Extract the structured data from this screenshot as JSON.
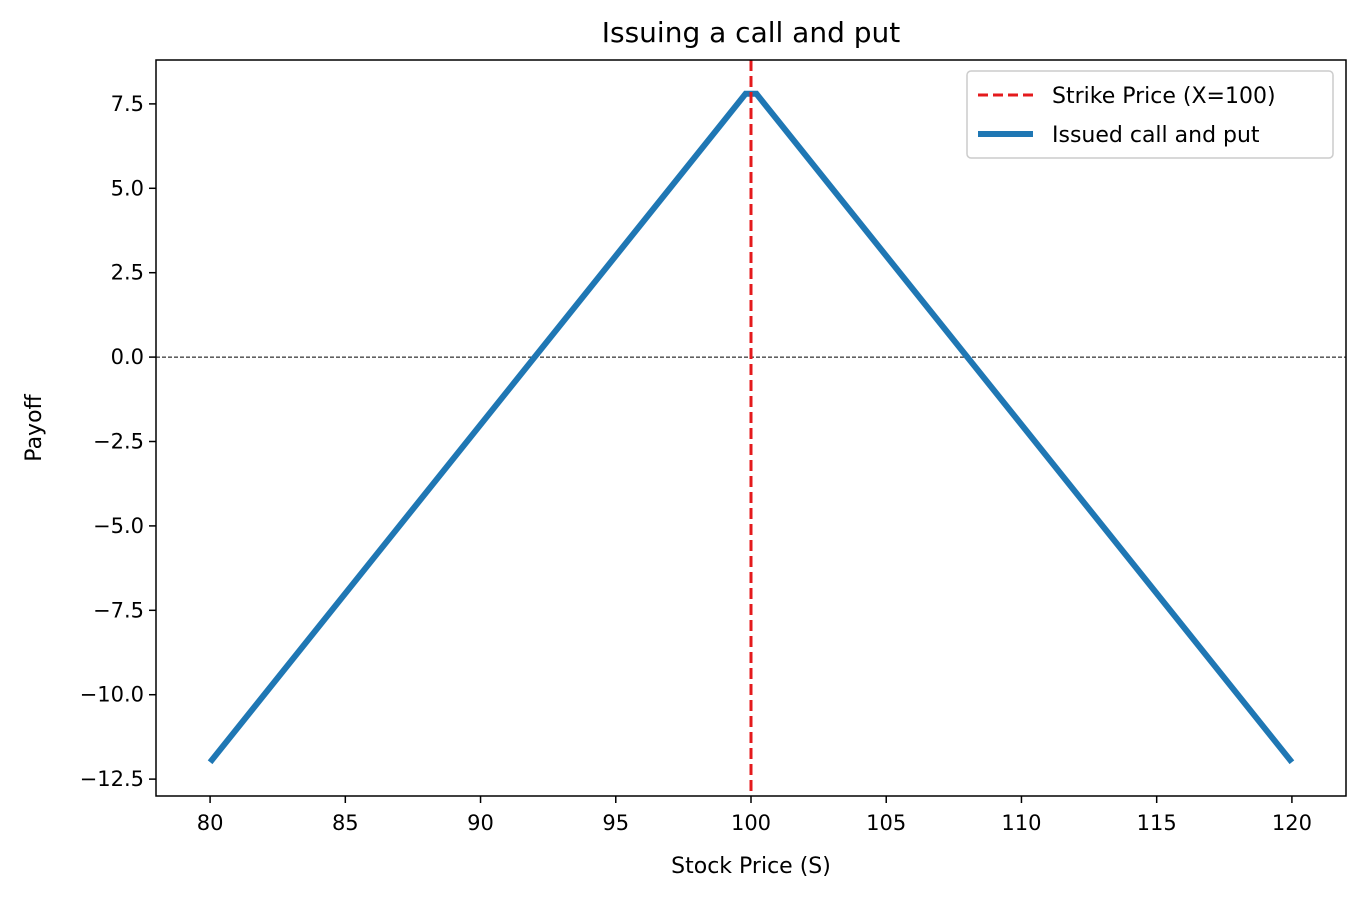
{
  "chart_data": {
    "type": "line",
    "title": "Issuing a call and put",
    "xlabel": "Stock Price (S)",
    "ylabel": "Payoff",
    "xlim": [
      78,
      122
    ],
    "ylim": [
      -13.0,
      8.8
    ],
    "x_ticks": [
      80,
      85,
      90,
      95,
      100,
      105,
      110,
      115,
      120
    ],
    "x_tick_labels": [
      "80",
      "85",
      "90",
      "95",
      "100",
      "105",
      "110",
      "115",
      "120"
    ],
    "y_ticks": [
      7.5,
      5.0,
      2.5,
      0.0,
      -2.5,
      -5.0,
      -7.5,
      -10.0,
      -12.5
    ],
    "y_tick_labels": [
      "7.5",
      "5.0",
      "2.5",
      "0.0",
      "−2.5",
      "−5.0",
      "−7.5",
      "−10.0",
      "−12.5"
    ],
    "grid": false,
    "legend_position": "top-right",
    "zero_line": {
      "y": 0.0,
      "style": "dashed",
      "color": "#000000"
    },
    "strike_line": {
      "name": "Strike Price (X=100)",
      "x": 100,
      "color": "#e41a1c",
      "style": "dashed"
    },
    "series": [
      {
        "name": "Issued call and put",
        "color": "#1f77b4",
        "x": [
          80,
          99.8,
          100.2,
          120
        ],
        "y": [
          -12.0,
          7.8,
          7.8,
          -12.0
        ]
      }
    ]
  }
}
